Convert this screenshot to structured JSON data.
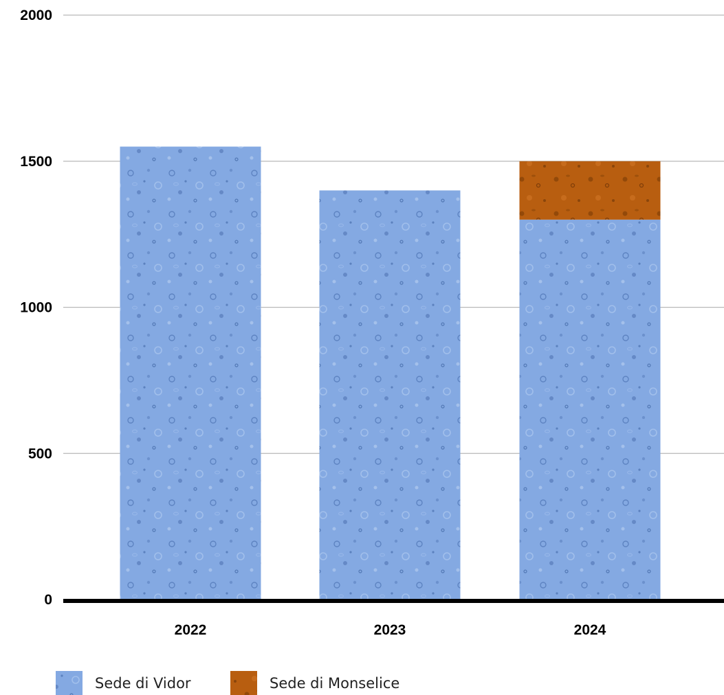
{
  "chart_data": {
    "type": "bar",
    "stacked": true,
    "categories": [
      "2022",
      "2023",
      "2024"
    ],
    "series": [
      {
        "name": "Sede di Vidor",
        "values": [
          1550,
          1400,
          1300
        ],
        "color": "#7ea6e0"
      },
      {
        "name": "Sede di Monselice",
        "values": [
          0,
          0,
          200
        ],
        "color": "#b65c0e"
      }
    ],
    "ylim": [
      0,
      2000
    ],
    "yticks": [
      0,
      500,
      1000,
      1500,
      2000
    ],
    "grid": true,
    "legend_position": "bottom-left",
    "title": "",
    "xlabel": "",
    "ylabel": ""
  }
}
